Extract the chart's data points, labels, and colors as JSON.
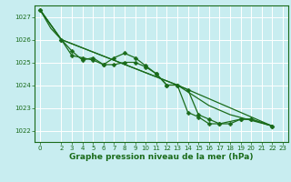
{
  "title": "Graphe pression niveau de la mer (hPa)",
  "bg_color": "#c8edf0",
  "grid_color": "#ffffff",
  "line_color": "#1a6b1a",
  "ylim": [
    1021.5,
    1027.5
  ],
  "yticks": [
    1022,
    1023,
    1024,
    1025,
    1026,
    1027
  ],
  "xlim": [
    -0.5,
    23.5
  ],
  "xticks": [
    0,
    2,
    3,
    4,
    5,
    6,
    7,
    8,
    9,
    10,
    11,
    12,
    13,
    14,
    15,
    16,
    17,
    18,
    19,
    20,
    21,
    22,
    23
  ],
  "series_with_markers": [
    {
      "x": [
        0,
        2,
        3,
        4,
        5,
        6,
        7,
        8,
        9,
        10,
        11,
        12,
        13,
        14,
        15,
        16,
        17,
        19,
        20,
        22
      ],
      "y": [
        1027.3,
        1026.0,
        1025.5,
        1025.1,
        1025.2,
        1024.9,
        1024.9,
        1025.0,
        1025.0,
        1024.8,
        1024.5,
        1024.0,
        1024.0,
        1022.8,
        1022.6,
        1022.3,
        1022.3,
        1022.5,
        1022.5,
        1022.2
      ]
    },
    {
      "x": [
        0,
        2,
        3,
        4,
        5,
        6,
        7,
        8,
        9,
        10,
        11,
        12,
        13,
        14,
        15,
        16,
        17,
        18,
        19,
        20,
        22
      ],
      "y": [
        1027.3,
        1026.0,
        1025.3,
        1025.2,
        1025.1,
        1024.9,
        1025.2,
        1025.4,
        1025.2,
        1024.85,
        1024.5,
        1024.0,
        1024.0,
        1023.8,
        1022.7,
        1022.5,
        1022.3,
        1022.3,
        1022.5,
        1022.5,
        1022.2
      ]
    }
  ],
  "series_lines": [
    {
      "x": [
        0,
        1,
        2,
        13,
        16,
        18,
        22
      ],
      "y": [
        1027.3,
        1026.5,
        1026.0,
        1024.0,
        1023.1,
        1022.7,
        1022.2
      ]
    },
    {
      "x": [
        0,
        2,
        13,
        22
      ],
      "y": [
        1027.3,
        1026.0,
        1024.0,
        1022.2
      ]
    }
  ],
  "marker_size": 2.5,
  "line_width": 0.9,
  "title_fontsize": 6.5,
  "tick_fontsize": 5.0
}
